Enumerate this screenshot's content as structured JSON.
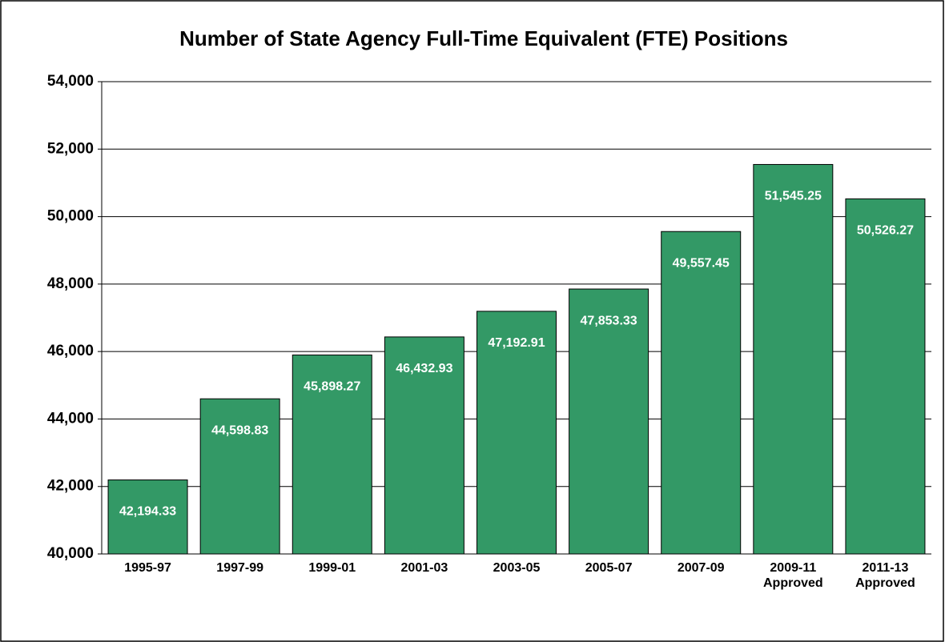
{
  "chart_data": {
    "type": "bar",
    "title": "Number of State Agency Full-Time Equivalent (FTE) Positions",
    "categories": [
      "1995-97",
      "1997-99",
      "1999-01",
      "2001-03",
      "2003-05",
      "2005-07",
      "2007-09",
      "2009-11 Approved",
      "2011-13 Approved"
    ],
    "values": [
      42194.33,
      44598.83,
      45898.27,
      46432.93,
      47192.91,
      47853.33,
      49557.45,
      51545.25,
      50526.27
    ],
    "value_labels": [
      "42,194.33",
      "44,598.83",
      "45,898.27",
      "46,432.93",
      "47,192.91",
      "47,853.33",
      "49,557.45",
      "51,545.25",
      "50,526.27"
    ],
    "color": "#339966",
    "ylim": [
      40000,
      54000
    ],
    "yticks": [
      {
        "value": 40000,
        "label": "40,000"
      },
      {
        "value": 42000,
        "label": "42,000"
      },
      {
        "value": 44000,
        "label": "44,000"
      },
      {
        "value": 46000,
        "label": "46,000"
      },
      {
        "value": 48000,
        "label": "48,000"
      },
      {
        "value": 50000,
        "label": "50,000"
      },
      {
        "value": 52000,
        "label": "52,000"
      },
      {
        "value": 54000,
        "label": "54,000"
      }
    ],
    "grid": true
  }
}
